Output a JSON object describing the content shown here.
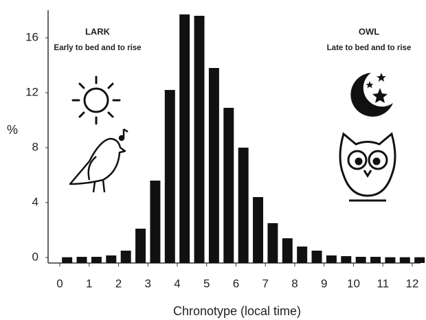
{
  "chart_data": {
    "type": "histogram",
    "xlabel": "Chronotype (local time)",
    "ylabel": "%",
    "annotations": [
      "LARK",
      "Early to bed and to rise",
      "OWL",
      "Late to bed and to rise"
    ],
    "bins": [
      0,
      0.5,
      1,
      1.5,
      2,
      2.5,
      3,
      3.5,
      4,
      4.5,
      5,
      5.5,
      6,
      6.5,
      7,
      7.5,
      8,
      8.5,
      9,
      9.5,
      10,
      10.5,
      11,
      11.5,
      12,
      12.5
    ],
    "values": [
      0.02,
      0.05,
      0.05,
      0.15,
      0.5,
      2.1,
      5.6,
      12.2,
      17.7,
      17.6,
      13.8,
      10.9,
      8.0,
      4.4,
      2.5,
      1.4,
      0.8,
      0.5,
      0.15,
      0.1,
      0.05,
      0.05,
      0.02,
      0.02,
      0.02
    ],
    "color": "#111111",
    "xlim": [
      -0.1,
      12.3
    ],
    "ylim": [
      -0.4,
      18
    ],
    "xticks": [
      0,
      1,
      2,
      3,
      4,
      5,
      6,
      7,
      8,
      9,
      10,
      11,
      12
    ],
    "yticks": [
      0,
      4,
      8,
      12,
      16
    ]
  }
}
